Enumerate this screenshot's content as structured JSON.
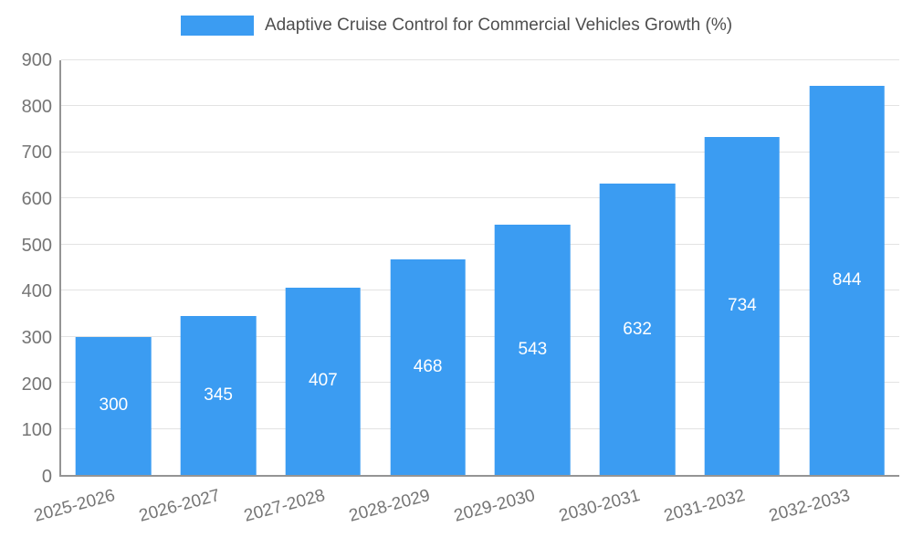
{
  "chart_data": {
    "type": "bar",
    "title": "Adaptive Cruise Control for Commercial Vehicles Growth (%)",
    "categories": [
      "2025-2026",
      "2026-2027",
      "2027-2028",
      "2028-2029",
      "2029-2030",
      "2030-2031",
      "2031-2032",
      "2032-2033"
    ],
    "values": [
      300,
      345,
      407,
      468,
      543,
      632,
      734,
      844
    ],
    "xlabel": "",
    "ylabel": "",
    "ylim": [
      0,
      900
    ],
    "ytick_step": 100,
    "grid": true,
    "legend_position": "top",
    "bar_color": "#3b9cf2",
    "bar_label_color": "#ffffff",
    "axis_text_color": "#757575",
    "title_color": "#4e4e4e"
  }
}
